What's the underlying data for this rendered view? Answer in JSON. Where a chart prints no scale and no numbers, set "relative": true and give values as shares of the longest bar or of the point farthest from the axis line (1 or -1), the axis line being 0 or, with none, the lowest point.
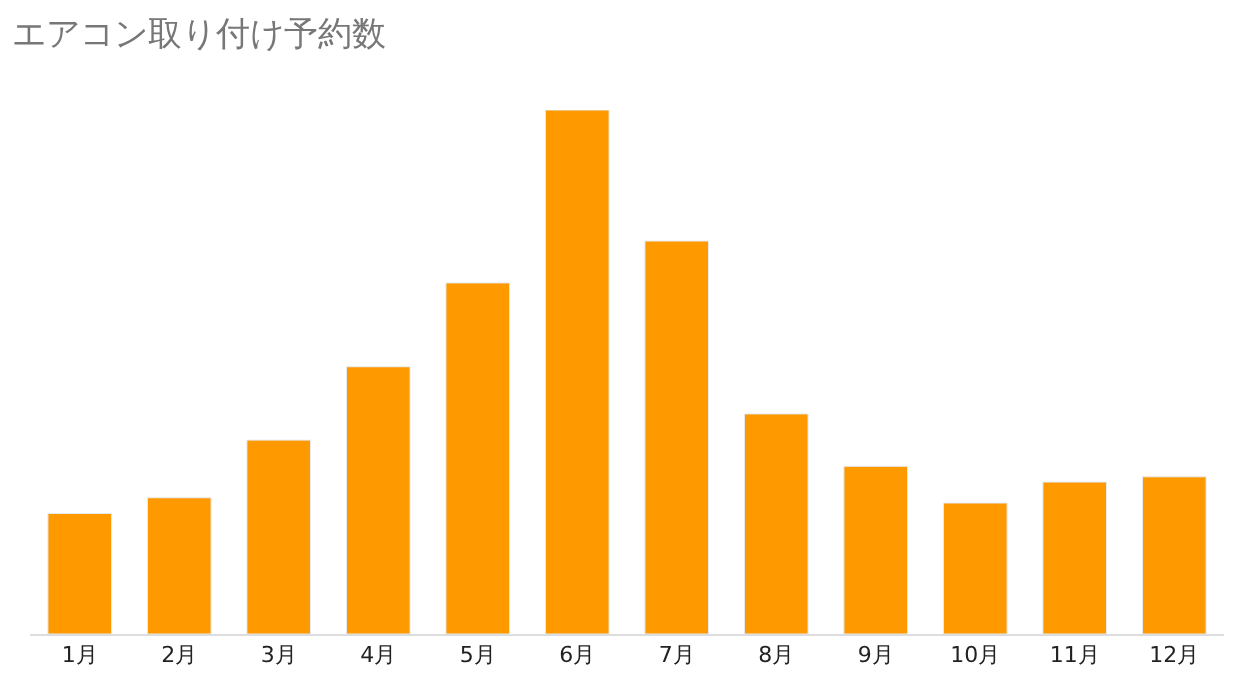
{
  "chart_data": {
    "type": "bar",
    "title": "エアコン取り付け予約数",
    "categories": [
      "1月",
      "2月",
      "3月",
      "4月",
      "5月",
      "6月",
      "7月",
      "8月",
      "9月",
      "10月",
      "11月",
      "12月"
    ],
    "values": [
      0.23,
      0.26,
      0.37,
      0.51,
      0.67,
      1,
      0.75,
      0.42,
      0.32,
      0.25,
      0.29,
      0.3
    ],
    "color": "#ff9900",
    "relative": true
  }
}
